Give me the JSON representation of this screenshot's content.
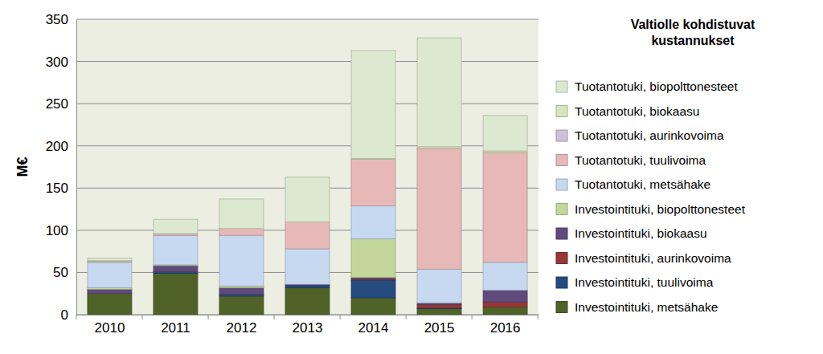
{
  "chart_data": {
    "type": "bar",
    "stacked": true,
    "title": "Valtiolle kohdistuvat kustannukset",
    "y_label": "M€",
    "categories": [
      "2010",
      "2011",
      "2012",
      "2013",
      "2014",
      "2015",
      "2016"
    ],
    "ylim": [
      0,
      350
    ],
    "yticks": [
      0,
      50,
      100,
      150,
      200,
      250,
      300,
      350
    ],
    "grid": true,
    "legend": "right",
    "series": [
      {
        "name": "Investointituki, metsähake",
        "color": "#4f6228",
        "values": [
          25,
          49,
          22,
          32,
          20,
          7,
          9
        ]
      },
      {
        "name": "Investointituki, tuulivoima",
        "color": "#254b7e",
        "values": [
          0,
          2,
          2,
          3,
          21,
          1,
          0
        ]
      },
      {
        "name": "Investointituki, aurinkovoima",
        "color": "#953735",
        "values": [
          0,
          0,
          0,
          0,
          1,
          4,
          6
        ]
      },
      {
        "name": "Investointituki, biokaasu",
        "color": "#604a7b",
        "values": [
          5,
          7,
          8,
          1,
          2,
          2,
          14
        ]
      },
      {
        "name": "Investointituki, biopolttonesteet",
        "color": "#c3d69b",
        "values": [
          2,
          1,
          2,
          0,
          46,
          0,
          0
        ]
      },
      {
        "name": "Tuotantotuki, metsähake",
        "color": "#c6d9f1",
        "values": [
          30,
          35,
          60,
          42,
          39,
          40,
          33
        ]
      },
      {
        "name": "Tuotantotuki, tuulivoima",
        "color": "#e6b9b8",
        "values": [
          1,
          2,
          8,
          32,
          55,
          143,
          130
        ]
      },
      {
        "name": "Tuotantotuki, aurinkovoima",
        "color": "#ccc1da",
        "values": [
          0,
          0,
          0,
          0,
          0,
          0,
          0
        ]
      },
      {
        "name": "Tuotantotuki, biokaasu",
        "color": "#d7e4bd",
        "values": [
          1,
          0,
          0,
          0,
          1,
          2,
          2
        ]
      },
      {
        "name": "Tuotantotuki, biopolttonesteet",
        "color": "#dde8d0",
        "values": [
          3,
          17,
          35,
          53,
          128,
          129,
          42
        ]
      }
    ]
  }
}
